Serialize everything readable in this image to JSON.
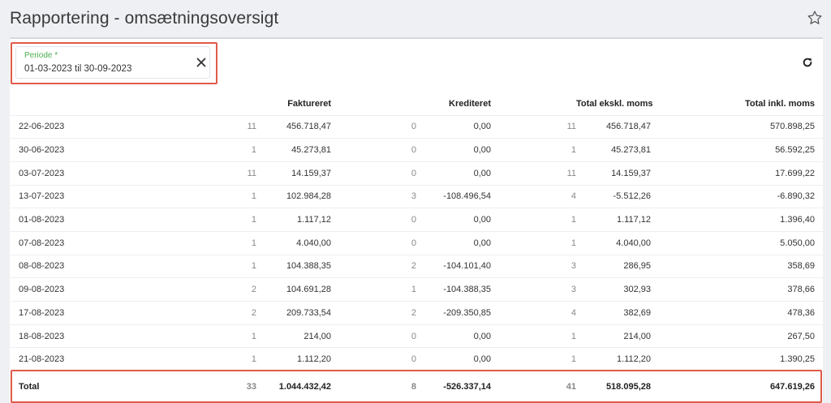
{
  "page": {
    "title": "Rapportering - omsætningsoversigt",
    "favorite_icon": "star-outline-icon"
  },
  "filter": {
    "label": "Periode *",
    "value": "01-03-2023 til 30-09-2023",
    "clear_icon": "close-icon",
    "label_color": "#4caf50"
  },
  "toolbar": {
    "refresh_icon": "refresh-icon"
  },
  "highlight_color": "#e05a4a",
  "table": {
    "headers": {
      "date": "",
      "invoiced_count": "",
      "invoiced": "Faktureret",
      "credited_count": "",
      "credited": "Krediteret",
      "total_excl_count": "",
      "total_excl": "Total ekskl. moms",
      "total_incl": "Total inkl. moms"
    },
    "rows": [
      {
        "date": "22-06-2023",
        "fc": "11",
        "f": "456.718,47",
        "kc": "0",
        "k": "0,00",
        "tc": "11",
        "t": "456.718,47",
        "ti": "570.898,25"
      },
      {
        "date": "30-06-2023",
        "fc": "1",
        "f": "45.273,81",
        "kc": "0",
        "k": "0,00",
        "tc": "1",
        "t": "45.273,81",
        "ti": "56.592,25"
      },
      {
        "date": "03-07-2023",
        "fc": "11",
        "f": "14.159,37",
        "kc": "0",
        "k": "0,00",
        "tc": "11",
        "t": "14.159,37",
        "ti": "17.699,22"
      },
      {
        "date": "13-07-2023",
        "fc": "1",
        "f": "102.984,28",
        "kc": "3",
        "k": "-108.496,54",
        "tc": "4",
        "t": "-5.512,26",
        "ti": "-6.890,32"
      },
      {
        "date": "01-08-2023",
        "fc": "1",
        "f": "1.117,12",
        "kc": "0",
        "k": "0,00",
        "tc": "1",
        "t": "1.117,12",
        "ti": "1.396,40"
      },
      {
        "date": "07-08-2023",
        "fc": "1",
        "f": "4.040,00",
        "kc": "0",
        "k": "0,00",
        "tc": "1",
        "t": "4.040,00",
        "ti": "5.050,00"
      },
      {
        "date": "08-08-2023",
        "fc": "1",
        "f": "104.388,35",
        "kc": "2",
        "k": "-104.101,40",
        "tc": "3",
        "t": "286,95",
        "ti": "358,69"
      },
      {
        "date": "09-08-2023",
        "fc": "2",
        "f": "104.691,28",
        "kc": "1",
        "k": "-104.388,35",
        "tc": "3",
        "t": "302,93",
        "ti": "378,66"
      },
      {
        "date": "17-08-2023",
        "fc": "2",
        "f": "209.733,54",
        "kc": "2",
        "k": "-209.350,85",
        "tc": "4",
        "t": "382,69",
        "ti": "478,36"
      },
      {
        "date": "18-08-2023",
        "fc": "1",
        "f": "214,00",
        "kc": "0",
        "k": "0,00",
        "tc": "1",
        "t": "214,00",
        "ti": "267,50"
      },
      {
        "date": "21-08-2023",
        "fc": "1",
        "f": "1.112,20",
        "kc": "0",
        "k": "0,00",
        "tc": "1",
        "t": "1.112,20",
        "ti": "1.390,25"
      }
    ],
    "total": {
      "label": "Total",
      "fc": "33",
      "f": "1.044.432,42",
      "kc": "8",
      "k": "-526.337,14",
      "tc": "41",
      "t": "518.095,28",
      "ti": "647.619,26"
    }
  }
}
